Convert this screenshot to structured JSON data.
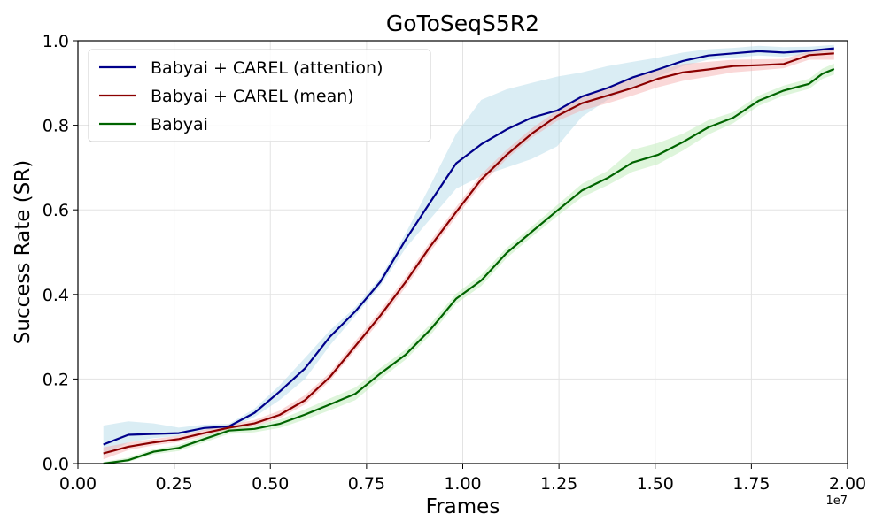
{
  "chart_data": {
    "type": "line",
    "title": "GoToSeqS5R2",
    "xlabel": "Frames",
    "ylabel": "Success Rate (SR)",
    "x_offset_label": "1e7",
    "xlim": [
      0.0,
      2.0
    ],
    "ylim": [
      0.0,
      1.0
    ],
    "xticks": [
      "0.00",
      "0.25",
      "0.50",
      "0.75",
      "1.00",
      "1.25",
      "1.50",
      "1.75",
      "2.00"
    ],
    "yticks": [
      "0.0",
      "0.2",
      "0.4",
      "0.6",
      "0.8",
      "1.0"
    ],
    "grid": true,
    "legend_position": "upper-left",
    "x": [
      0.066,
      0.131,
      0.197,
      0.262,
      0.328,
      0.393,
      0.459,
      0.524,
      0.59,
      0.655,
      0.721,
      0.786,
      0.852,
      0.917,
      0.983,
      1.048,
      1.114,
      1.179,
      1.245,
      1.31,
      1.376,
      1.441,
      1.507,
      1.572,
      1.638,
      1.703,
      1.769,
      1.834,
      1.9,
      1.965
    ],
    "series": [
      {
        "name": "Babyai + CAREL (attention)",
        "color": "#00008b",
        "band_color": "#add8e6",
        "values": [
          0.045,
          0.068,
          0.07,
          0.072,
          0.084,
          0.088,
          0.12,
          0.17,
          0.225,
          0.3,
          0.36,
          0.43,
          0.53,
          0.62,
          0.71,
          0.755,
          0.79,
          0.818,
          0.835,
          0.868,
          0.888,
          0.913,
          0.932,
          0.952,
          0.965,
          0.97,
          0.975,
          0.972,
          0.976,
          0.982
        ],
        "lower": [
          0.02,
          0.05,
          0.06,
          0.065,
          0.078,
          0.082,
          0.11,
          0.15,
          0.2,
          0.28,
          0.35,
          0.42,
          0.51,
          0.58,
          0.65,
          0.68,
          0.7,
          0.72,
          0.75,
          0.82,
          0.86,
          0.89,
          0.915,
          0.94,
          0.955,
          0.96,
          0.965,
          0.962,
          0.968,
          0.975
        ],
        "upper": [
          0.09,
          0.1,
          0.095,
          0.085,
          0.092,
          0.094,
          0.13,
          0.185,
          0.25,
          0.315,
          0.37,
          0.44,
          0.545,
          0.66,
          0.78,
          0.86,
          0.885,
          0.9,
          0.915,
          0.925,
          0.94,
          0.95,
          0.96,
          0.972,
          0.98,
          0.983,
          0.988,
          0.985,
          0.986,
          0.99
        ]
      },
      {
        "name": "Babyai + CAREL (mean)",
        "color": "#8b0000",
        "band_color": "#f4a9a8",
        "values": [
          0.024,
          0.04,
          0.05,
          0.058,
          0.072,
          0.085,
          0.095,
          0.115,
          0.15,
          0.205,
          0.278,
          0.35,
          0.43,
          0.515,
          0.595,
          0.672,
          0.73,
          0.78,
          0.822,
          0.852,
          0.87,
          0.888,
          0.91,
          0.925,
          0.932,
          0.94,
          0.942,
          0.945,
          0.966,
          0.97
        ],
        "lower": [
          0.01,
          0.032,
          0.043,
          0.051,
          0.065,
          0.078,
          0.088,
          0.107,
          0.14,
          0.196,
          0.268,
          0.338,
          0.418,
          0.503,
          0.583,
          0.66,
          0.72,
          0.77,
          0.81,
          0.835,
          0.852,
          0.87,
          0.89,
          0.905,
          0.915,
          0.925,
          0.93,
          0.935,
          0.955,
          0.955
        ],
        "upper": [
          0.038,
          0.05,
          0.058,
          0.066,
          0.08,
          0.092,
          0.103,
          0.125,
          0.162,
          0.215,
          0.29,
          0.362,
          0.442,
          0.527,
          0.607,
          0.684,
          0.742,
          0.792,
          0.835,
          0.87,
          0.89,
          0.91,
          0.93,
          0.945,
          0.95,
          0.955,
          0.956,
          0.957,
          0.975,
          0.982
        ]
      },
      {
        "name": "Babyai",
        "color": "#006400",
        "band_color": "#b5e8b0",
        "values": [
          0.0,
          0.008,
          0.028,
          0.037,
          0.058,
          0.078,
          0.082,
          0.094,
          0.116,
          0.14,
          0.165,
          0.213,
          0.258,
          0.318,
          0.39,
          0.433,
          0.498,
          0.548,
          0.598,
          0.646,
          0.675,
          0.712,
          0.73,
          0.76,
          0.795,
          0.818,
          0.858,
          0.882,
          0.898,
          0.922,
          0.933
        ],
        "x": [
          0.066,
          0.131,
          0.197,
          0.262,
          0.328,
          0.393,
          0.459,
          0.524,
          0.59,
          0.655,
          0.721,
          0.786,
          0.852,
          0.917,
          0.983,
          1.048,
          1.114,
          1.179,
          1.245,
          1.31,
          1.376,
          1.441,
          1.507,
          1.572,
          1.638,
          1.703,
          1.769,
          1.834,
          1.9,
          1.935,
          1.965
        ],
        "lower": [
          0.0,
          0.004,
          0.022,
          0.03,
          0.05,
          0.07,
          0.074,
          0.084,
          0.104,
          0.126,
          0.15,
          0.2,
          0.246,
          0.305,
          0.378,
          0.42,
          0.486,
          0.536,
          0.585,
          0.63,
          0.658,
          0.69,
          0.708,
          0.74,
          0.778,
          0.805,
          0.846,
          0.87,
          0.886,
          0.91,
          0.92
        ],
        "upper": [
          0.004,
          0.014,
          0.034,
          0.044,
          0.066,
          0.086,
          0.09,
          0.104,
          0.128,
          0.154,
          0.18,
          0.226,
          0.27,
          0.331,
          0.402,
          0.446,
          0.51,
          0.56,
          0.611,
          0.662,
          0.692,
          0.742,
          0.758,
          0.78,
          0.812,
          0.831,
          0.87,
          0.894,
          0.91,
          0.934,
          0.946
        ]
      }
    ]
  }
}
